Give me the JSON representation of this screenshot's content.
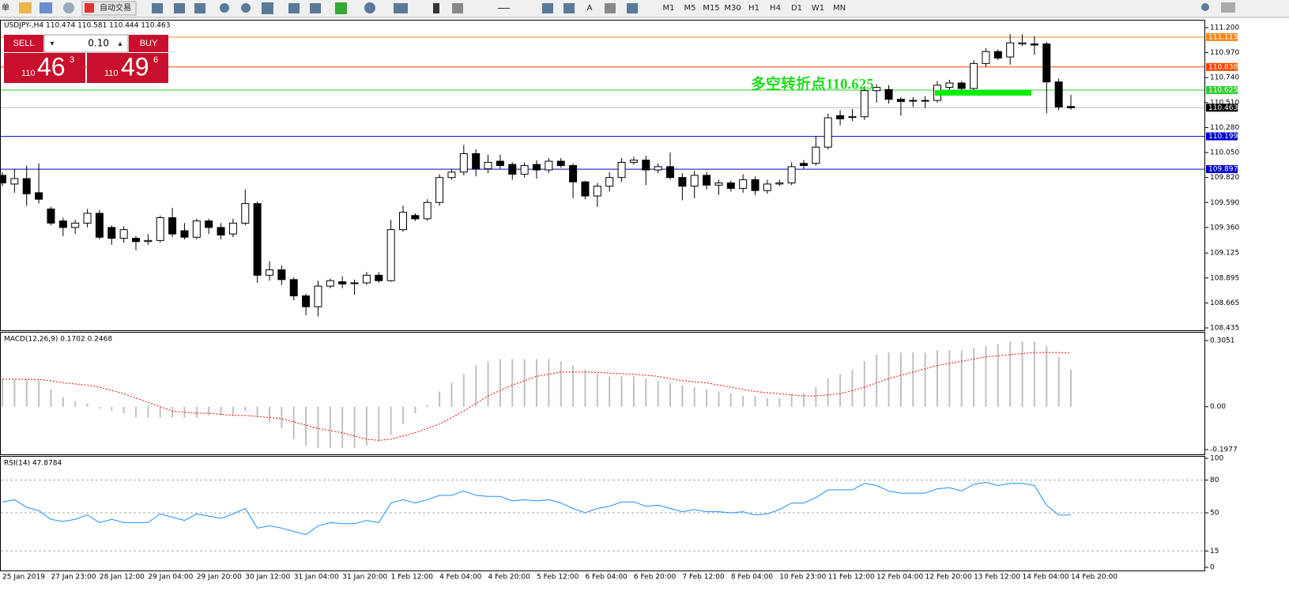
{
  "toolbar": {
    "menu": "单",
    "auto_trade": "自动交易",
    "text_tool": "A",
    "timeframes": [
      "M1",
      "M5",
      "M15",
      "M30",
      "H1",
      "H4",
      "D1",
      "W1",
      "MN"
    ]
  },
  "trade_panel": {
    "sell": "SELL",
    "lot": "0.10",
    "buy": "BUY",
    "sell_price": {
      "big_figure": "110",
      "pips": "46",
      "point": "3"
    },
    "buy_price": {
      "big_figure": "110",
      "pips": "49",
      "point": "6"
    }
  },
  "chart_data": [
    {
      "type": "candlestick",
      "title": "USDJPY-,H4  110.474 110.581 110.444 110.463",
      "categories": [
        "25 Jan 2019",
        null,
        null,
        null,
        "27 Jan 23:00",
        null,
        null,
        null,
        "28 Jan 12:00",
        null,
        null,
        null,
        "29 Jan 04:00",
        null,
        null,
        null,
        "29 Jan 20:00",
        null,
        null,
        null,
        "30 Jan 12:00",
        null,
        null,
        null,
        "31 Jan 04:00",
        null,
        null,
        null,
        "31 Jan 20:00",
        null,
        null,
        null,
        "1 Feb 12:00",
        null,
        null,
        null,
        "4 Feb 04:00",
        null,
        null,
        null,
        "4 Feb 20:00",
        null,
        null,
        null,
        "5 Feb 12:00",
        null,
        null,
        null,
        "6 Feb 04:00",
        null,
        null,
        null,
        "6 Feb 20:00",
        null,
        null,
        null,
        "7 Feb 12:00",
        null,
        null,
        null,
        "8 Feb 04:00",
        null,
        null,
        null,
        "10 Feb 23:00",
        null,
        null,
        null,
        "11 Feb 12:00",
        null,
        null,
        null,
        "12 Feb 04:00",
        null,
        null,
        null,
        "12 Feb 20:00",
        null,
        null,
        null,
        "13 Feb 12:00",
        null,
        null,
        null,
        "14 Feb 04:00",
        null,
        null,
        null,
        "14 Feb 20:00"
      ],
      "open": [
        109.84,
        109.76,
        109.81,
        109.68,
        109.53,
        109.42,
        109.36,
        109.4,
        109.49,
        109.36,
        109.26,
        109.26,
        109.23,
        109.24,
        109.45,
        109.33,
        109.27,
        109.42,
        109.36,
        109.3,
        109.4,
        109.58,
        108.92,
        108.97,
        108.88,
        108.73,
        108.63,
        108.82,
        108.86,
        108.85,
        108.85,
        108.92,
        108.87,
        109.34,
        109.47,
        109.44,
        109.59,
        109.82,
        109.87,
        110.04,
        109.9,
        109.97,
        109.94,
        109.85,
        109.94,
        109.89,
        109.97,
        109.93,
        109.78,
        109.65,
        109.74,
        109.82,
        109.96,
        109.98,
        109.89,
        109.92,
        109.82,
        109.74,
        109.84,
        109.75,
        109.77,
        109.72,
        109.8,
        109.7,
        109.76,
        109.77,
        109.95,
        109.95,
        110.1,
        110.39,
        110.38,
        110.38,
        110.62,
        110.63,
        110.54,
        110.53,
        110.53,
        110.53,
        110.65,
        110.69,
        110.64,
        110.87,
        110.98,
        110.93,
        111.05,
        111.05,
        111.05,
        110.7,
        110.474
      ],
      "high": [
        109.87,
        109.9,
        109.93,
        109.95,
        109.55,
        109.45,
        109.43,
        109.53,
        109.52,
        109.38,
        109.37,
        109.28,
        109.3,
        109.47,
        109.54,
        109.4,
        109.44,
        109.44,
        109.4,
        109.44,
        109.71,
        109.6,
        109.05,
        109.01,
        108.9,
        108.75,
        108.87,
        108.89,
        108.91,
        108.88,
        108.95,
        108.95,
        109.43,
        109.56,
        109.49,
        109.62,
        109.85,
        109.9,
        110.12,
        110.08,
        110.03,
        110.03,
        109.96,
        109.96,
        109.98,
        110.0,
        110.0,
        109.95,
        109.79,
        109.77,
        109.87,
        110.0,
        110.01,
        110.02,
        109.95,
        110.05,
        109.86,
        109.88,
        109.87,
        109.8,
        109.79,
        109.85,
        109.83,
        109.8,
        109.8,
        109.96,
        109.98,
        110.2,
        110.41,
        110.44,
        110.45,
        110.66,
        110.68,
        110.67,
        110.56,
        110.56,
        110.57,
        110.71,
        110.72,
        110.71,
        110.9,
        111.01,
        111.0,
        111.14,
        111.14,
        111.12,
        111.07,
        110.73,
        110.581
      ],
      "low": [
        109.74,
        109.68,
        109.56,
        109.58,
        109.38,
        109.28,
        109.3,
        109.36,
        109.25,
        109.2,
        109.22,
        109.15,
        109.2,
        109.22,
        109.27,
        109.25,
        109.25,
        109.3,
        109.25,
        109.27,
        109.38,
        108.85,
        108.87,
        108.83,
        108.69,
        108.55,
        108.54,
        108.8,
        108.8,
        108.74,
        108.83,
        108.85,
        108.86,
        109.32,
        109.42,
        109.42,
        109.56,
        109.8,
        109.84,
        109.83,
        109.86,
        109.9,
        109.8,
        109.82,
        109.81,
        109.86,
        109.91,
        109.63,
        109.62,
        109.55,
        109.69,
        109.78,
        109.94,
        109.75,
        109.86,
        109.8,
        109.61,
        109.63,
        109.71,
        109.66,
        109.69,
        109.68,
        109.66,
        109.67,
        109.74,
        109.75,
        109.9,
        109.93,
        110.08,
        110.3,
        110.34,
        110.35,
        110.51,
        110.5,
        110.39,
        110.47,
        110.46,
        110.51,
        110.63,
        110.62,
        110.6,
        110.84,
        110.9,
        110.86,
        111.03,
        110.95,
        110.41,
        110.44,
        110.444
      ],
      "close": [
        109.77,
        109.81,
        109.67,
        109.62,
        109.4,
        109.36,
        109.4,
        109.49,
        109.27,
        109.26,
        109.34,
        109.23,
        109.24,
        109.45,
        109.3,
        109.27,
        109.42,
        109.36,
        109.29,
        109.4,
        109.58,
        108.92,
        108.97,
        108.88,
        108.73,
        108.63,
        108.82,
        108.87,
        108.84,
        108.85,
        108.92,
        108.87,
        109.34,
        109.5,
        109.44,
        109.59,
        109.82,
        109.87,
        110.04,
        109.9,
        109.96,
        109.93,
        109.85,
        109.93,
        109.89,
        109.97,
        109.93,
        109.78,
        109.65,
        109.74,
        109.82,
        109.96,
        109.98,
        109.89,
        109.92,
        109.82,
        109.74,
        109.84,
        109.75,
        109.77,
        109.72,
        109.8,
        109.7,
        109.76,
        109.77,
        109.92,
        109.93,
        110.1,
        110.37,
        110.36,
        110.38,
        110.62,
        110.65,
        110.54,
        110.52,
        110.53,
        110.53,
        110.67,
        110.69,
        110.64,
        110.87,
        110.98,
        110.92,
        111.06,
        111.06,
        111.04,
        110.7,
        110.47,
        110.463
      ],
      "up_color": "#ffffff",
      "down_color": "#000000",
      "ylim": [
        108.435,
        111.2
      ],
      "yticks": [
        {
          "value": 111.2,
          "label": "111.200"
        },
        {
          "value": 110.97,
          "label": "110.970"
        },
        {
          "value": 110.74,
          "label": "110.740"
        },
        {
          "value": 110.51,
          "label": "110.510"
        },
        {
          "value": 110.28,
          "label": "110.280"
        },
        {
          "value": 110.05,
          "label": "110.050"
        },
        {
          "value": 109.82,
          "label": "109.820"
        },
        {
          "value": 109.59,
          "label": "109.590"
        },
        {
          "value": 109.36,
          "label": "109.360"
        },
        109.125,
        {
          "value": 108.895,
          "label": "108.895"
        },
        108.665,
        108.435
      ],
      "hlines": [
        {
          "value": 111.113,
          "color": "#f08a24",
          "label_color": "#f08a24"
        },
        {
          "value": 110.838,
          "color": "#ff4500",
          "label_color": "#ff4500"
        },
        {
          "value": 110.625,
          "color": "#33cc33",
          "label_color": "#33cc33"
        },
        {
          "value": 110.463,
          "color": "#c0c0c0",
          "label_color": "#000000"
        },
        {
          "value": 110.199,
          "color": "#0000cc",
          "label_color": "#0000cc"
        },
        {
          "value": 109.897,
          "color": "#0000cc",
          "label_color": "#0000cc"
        }
      ],
      "annotation": {
        "text": "多空转折点110.625",
        "color": "#22dd22"
      }
    },
    {
      "type": "macd",
      "title": "MACD(12,26,9) 0.1702 0.2468",
      "series": [
        {
          "color": "#c0c0c0",
          "values": [
            0.127,
            0.127,
            0.127,
            0.12,
            0.08,
            0.044,
            0.025,
            0.015,
            -0.01,
            -0.02,
            -0.03,
            -0.05,
            -0.05,
            -0.05,
            -0.05,
            -0.05,
            -0.05,
            -0.04,
            -0.04,
            -0.04,
            -0.02,
            -0.05,
            -0.07,
            -0.1,
            -0.15,
            -0.18,
            -0.19,
            -0.19,
            -0.19,
            -0.19,
            -0.18,
            -0.16,
            -0.13,
            -0.08,
            -0.03,
            0.01,
            0.07,
            0.11,
            0.15,
            0.19,
            0.21,
            0.22,
            0.22,
            0.22,
            0.22,
            0.22,
            0.21,
            0.19,
            0.17,
            0.15,
            0.14,
            0.14,
            0.14,
            0.13,
            0.12,
            0.11,
            0.1,
            0.09,
            0.08,
            0.07,
            0.06,
            0.05,
            0.05,
            0.04,
            0.04,
            0.06,
            0.06,
            0.09,
            0.13,
            0.15,
            0.17,
            0.21,
            0.24,
            0.25,
            0.25,
            0.25,
            0.25,
            0.26,
            0.26,
            0.26,
            0.27,
            0.28,
            0.29,
            0.3,
            0.3,
            0.3,
            0.28,
            0.23,
            0.1702
          ]
        },
        {
          "color": "#ff0000",
          "values": [
            0.127,
            0.127,
            0.126,
            0.125,
            0.12,
            0.11,
            0.105,
            0.1,
            0.09,
            0.075,
            0.06,
            0.04,
            0.02,
            0.0,
            -0.02,
            -0.025,
            -0.03,
            -0.03,
            -0.035,
            -0.04,
            -0.04,
            -0.045,
            -0.05,
            -0.055,
            -0.07,
            -0.085,
            -0.1,
            -0.11,
            -0.12,
            -0.135,
            -0.15,
            -0.155,
            -0.15,
            -0.135,
            -0.12,
            -0.1,
            -0.08,
            -0.05,
            -0.02,
            0.015,
            0.05,
            0.075,
            0.1,
            0.12,
            0.14,
            0.15,
            0.16,
            0.16,
            0.16,
            0.158,
            0.155,
            0.152,
            0.15,
            0.145,
            0.14,
            0.13,
            0.12,
            0.115,
            0.11,
            0.1,
            0.09,
            0.08,
            0.07,
            0.065,
            0.06,
            0.055,
            0.05,
            0.05,
            0.055,
            0.06,
            0.075,
            0.09,
            0.11,
            0.13,
            0.145,
            0.16,
            0.175,
            0.19,
            0.2,
            0.21,
            0.22,
            0.23,
            0.235,
            0.24,
            0.245,
            0.25,
            0.25,
            0.25,
            0.2468
          ]
        }
      ],
      "ylim": [
        -0.1977,
        0.3051
      ],
      "yticks": [
        0.3051,
        {
          "value": 0,
          "label": "0.00"
        },
        -0.1977
      ]
    },
    {
      "type": "line",
      "title": "RSI(14) 47.8784",
      "color": "#1e90ff",
      "values": [
        60,
        62,
        55,
        52,
        44,
        42,
        44,
        48,
        41,
        44,
        41,
        41,
        41,
        49,
        46,
        43,
        49,
        47,
        45,
        49,
        54,
        36,
        38,
        36,
        33,
        30,
        38,
        41,
        40,
        40,
        43,
        41,
        59,
        62,
        59,
        62,
        66,
        66,
        70,
        66,
        65,
        65,
        61,
        62,
        61,
        62,
        59,
        54,
        50,
        54,
        56,
        60,
        60,
        56,
        57,
        54,
        51,
        53,
        51,
        51,
        50,
        51,
        48,
        49,
        53,
        59,
        59,
        64,
        71,
        71,
        71,
        77,
        75,
        70,
        68,
        68,
        68,
        72,
        73,
        70,
        76,
        78,
        75,
        77,
        77,
        75,
        57,
        48,
        47.8784
      ],
      "ylim": [
        0,
        100
      ],
      "yticks": [
        100,
        80,
        50,
        15,
        0
      ]
    }
  ]
}
